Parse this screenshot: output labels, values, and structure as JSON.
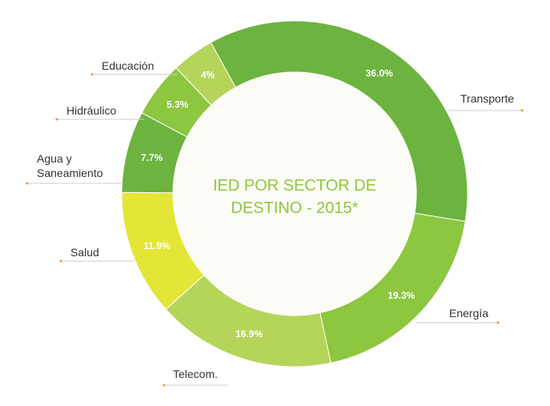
{
  "chart_data": {
    "type": "pie",
    "title": "IED POR SECTOR DE DESTINO - 2015*",
    "title_lines": [
      "IED POR SECTOR DE",
      "DESTINO - 2015*"
    ],
    "donut": true,
    "categories": [
      "Transporte",
      "Energía",
      "Telecom.",
      "Salud",
      "Agua y Saneamiento",
      "Hidráulico",
      "Educación"
    ],
    "category_lines": [
      [
        "Transporte"
      ],
      [
        "Energía"
      ],
      [
        "Telecom."
      ],
      [
        "Salud"
      ],
      [
        "Agua y",
        "Saneamiento"
      ],
      [
        "Hidráulico"
      ],
      [
        "Educación"
      ]
    ],
    "values": [
      36.0,
      19.3,
      16.9,
      11.9,
      7.7,
      5.3,
      4
    ],
    "value_labels": [
      "36.0%",
      "19.3%",
      "16.9%",
      "11.9%",
      "7.7%",
      "5.3%",
      "4%"
    ],
    "colors": [
      "#6cb33f",
      "#8dc63f",
      "#b5d45a",
      "#e3e636",
      "#6cb33f",
      "#8dc63f",
      "#b5d45a"
    ],
    "legend": "none",
    "connector_color": "#f7941d",
    "center_fill": "#fbfcf5"
  }
}
